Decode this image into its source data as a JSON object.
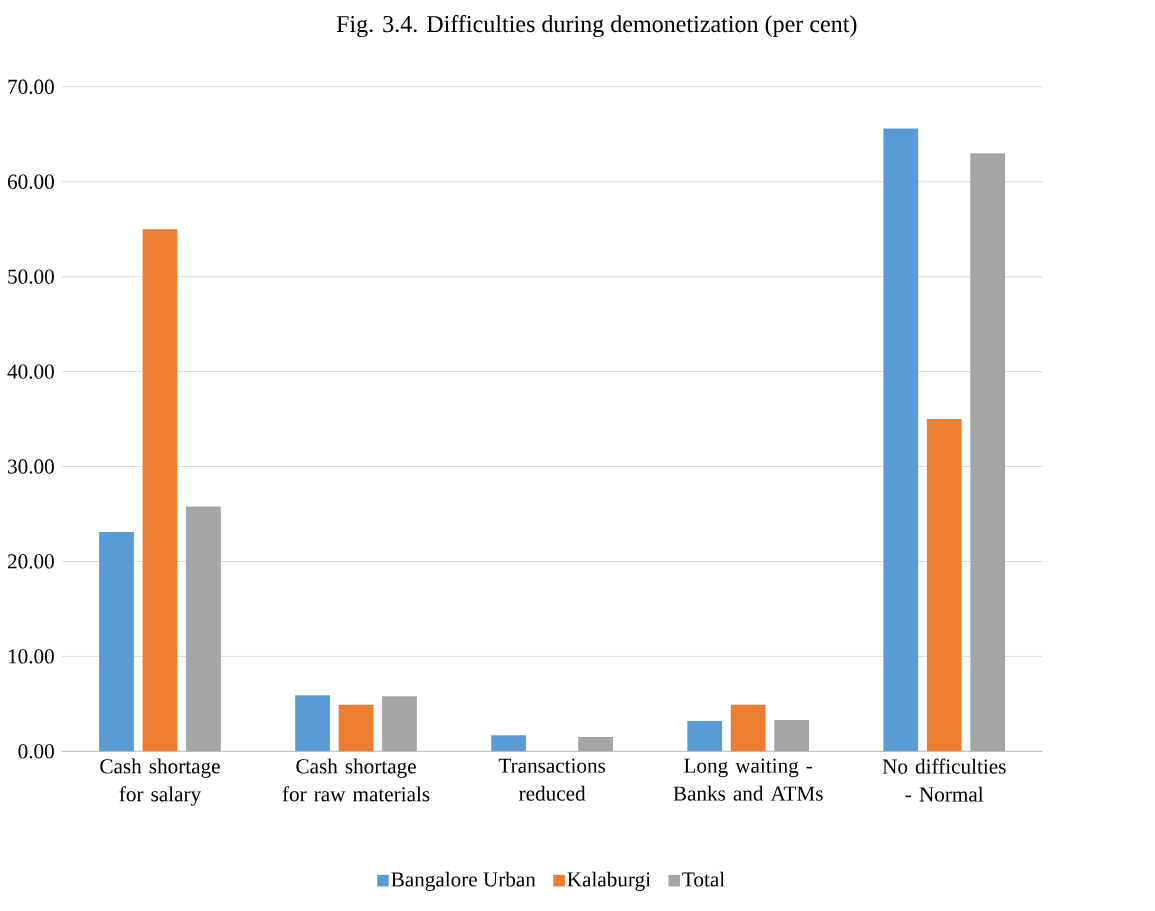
{
  "chart_data": {
    "type": "bar",
    "title": "Fig. 3.4. Difficulties during demonetization (per cent)",
    "categories": [
      "Cash shortage for salary",
      "Cash shortage for raw materials",
      "Transactions reduced",
      "Long waiting - Banks and ATMs",
      "No difficulties - Normal"
    ],
    "series": [
      {
        "name": "Bangalore Urban",
        "color": "#5b9bd5",
        "values": [
          23.1,
          5.9,
          1.7,
          3.2,
          65.6
        ]
      },
      {
        "name": "Kalaburgi",
        "color": "#ed7d31",
        "values": [
          55.0,
          4.9,
          0.0,
          4.9,
          35.0
        ]
      },
      {
        "name": "Total",
        "color": "#a5a5a5",
        "values": [
          25.8,
          5.8,
          1.5,
          3.3,
          63.0
        ]
      }
    ],
    "ylim": [
      0,
      70
    ],
    "yticks": [
      {
        "value": 0,
        "label": "0.00"
      },
      {
        "value": 10,
        "label": "10.00"
      },
      {
        "value": 20,
        "label": "20.00"
      },
      {
        "value": 30,
        "label": "30.00"
      },
      {
        "value": 40,
        "label": "40.00"
      },
      {
        "value": 50,
        "label": "50.00"
      },
      {
        "value": 60,
        "label": "60.00"
      },
      {
        "value": 70,
        "label": "70.00"
      }
    ],
    "grid": "y",
    "legend": "bottom"
  }
}
